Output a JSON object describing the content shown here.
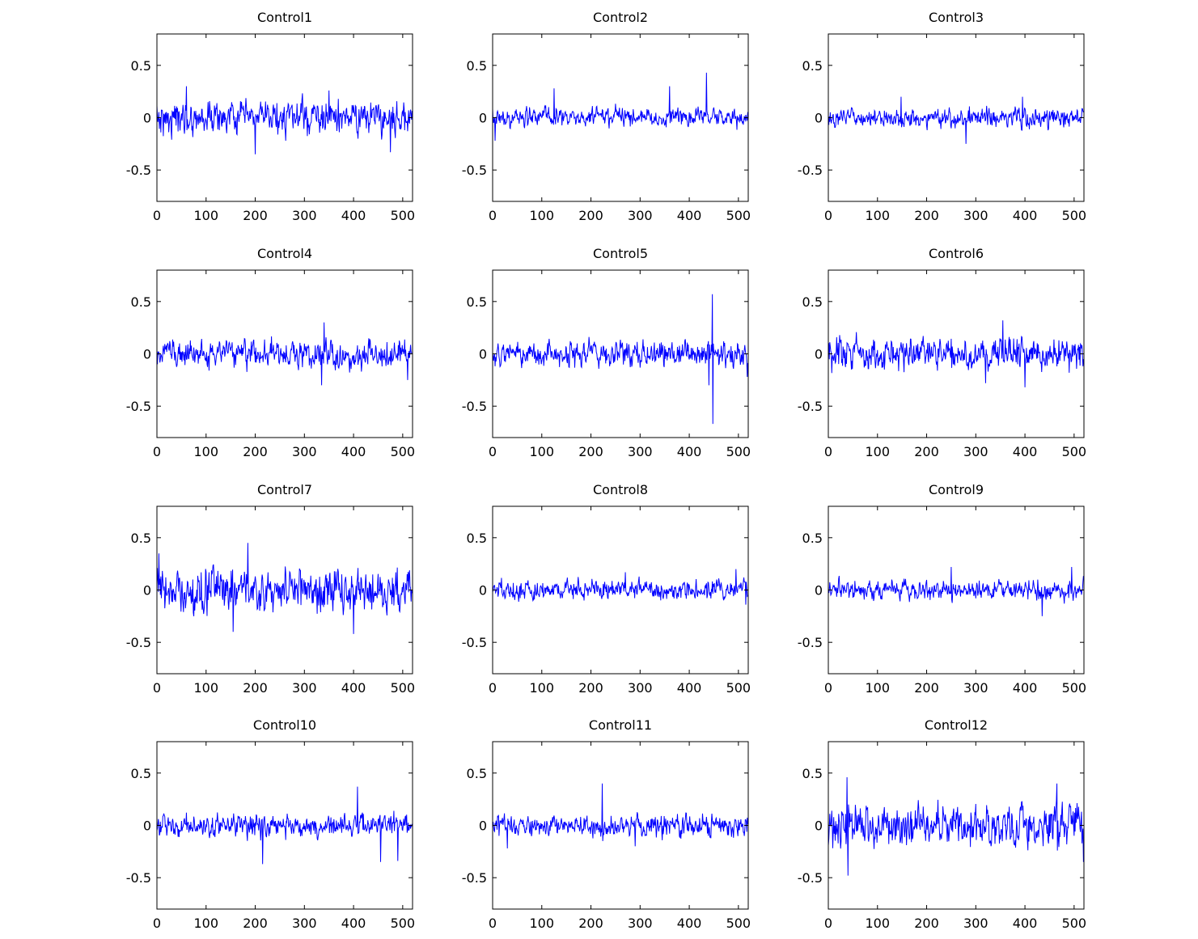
{
  "figure": {
    "background": "#ffffff",
    "line_color": "#0000ff"
  },
  "chart_data": [
    {
      "type": "line",
      "title": "Control1",
      "xlim": [
        0,
        520
      ],
      "ylim": [
        -0.8,
        0.8
      ],
      "xticks": [
        "0",
        "100",
        "200",
        "300",
        "400",
        "500"
      ],
      "yticks": [
        "0.5",
        "0",
        "-0.5"
      ],
      "grid": false,
      "n_points": 520,
      "amplitude": 0.1,
      "peak_max": 0.3,
      "peak_min": -0.35,
      "spikes": [
        {
          "x": 60,
          "y": 0.3
        },
        {
          "x": 200,
          "y": -0.35
        },
        {
          "x": 350,
          "y": 0.26
        },
        {
          "x": 475,
          "y": -0.33
        }
      ]
    },
    {
      "type": "line",
      "title": "Control2",
      "xlim": [
        0,
        520
      ],
      "ylim": [
        -0.8,
        0.8
      ],
      "xticks": [
        "0",
        "100",
        "200",
        "300",
        "400",
        "500"
      ],
      "yticks": [
        "0.5",
        "0",
        "-0.5"
      ],
      "grid": false,
      "n_points": 520,
      "amplitude": 0.06,
      "peak_max": 0.43,
      "peak_min": -0.22,
      "spikes": [
        {
          "x": 125,
          "y": 0.28
        },
        {
          "x": 360,
          "y": 0.3
        },
        {
          "x": 435,
          "y": 0.43
        },
        {
          "x": 5,
          "y": -0.22
        }
      ]
    },
    {
      "type": "line",
      "title": "Control3",
      "xlim": [
        0,
        520
      ],
      "ylim": [
        -0.8,
        0.8
      ],
      "xticks": [
        "0",
        "100",
        "200",
        "300",
        "400",
        "500"
      ],
      "yticks": [
        "0.5",
        "0",
        "-0.5"
      ],
      "grid": false,
      "n_points": 520,
      "amplitude": 0.06,
      "peak_max": 0.2,
      "peak_min": -0.25,
      "spikes": [
        {
          "x": 148,
          "y": 0.2
        },
        {
          "x": 280,
          "y": -0.25
        },
        {
          "x": 395,
          "y": 0.2
        }
      ]
    },
    {
      "type": "line",
      "title": "Control4",
      "xlim": [
        0,
        520
      ],
      "ylim": [
        -0.8,
        0.8
      ],
      "xticks": [
        "0",
        "100",
        "200",
        "300",
        "400",
        "500"
      ],
      "yticks": [
        "0.5",
        "0",
        "-0.5"
      ],
      "grid": false,
      "n_points": 520,
      "amplitude": 0.09,
      "peak_max": 0.3,
      "peak_min": -0.3,
      "spikes": [
        {
          "x": 340,
          "y": 0.3
        },
        {
          "x": 335,
          "y": -0.3
        },
        {
          "x": 510,
          "y": -0.25
        }
      ]
    },
    {
      "type": "line",
      "title": "Control5",
      "xlim": [
        0,
        520
      ],
      "ylim": [
        -0.8,
        0.8
      ],
      "xticks": [
        "0",
        "100",
        "200",
        "300",
        "400",
        "500"
      ],
      "yticks": [
        "0.5",
        "0",
        "-0.5"
      ],
      "grid": false,
      "n_points": 520,
      "amplitude": 0.08,
      "peak_max": 0.57,
      "peak_min": -0.67,
      "spikes": [
        {
          "x": 447,
          "y": 0.57
        },
        {
          "x": 448,
          "y": -0.67
        },
        {
          "x": 440,
          "y": -0.3
        },
        {
          "x": 518,
          "y": -0.22
        }
      ]
    },
    {
      "type": "line",
      "title": "Control6",
      "xlim": [
        0,
        520
      ],
      "ylim": [
        -0.8,
        0.8
      ],
      "xticks": [
        "0",
        "100",
        "200",
        "300",
        "400",
        "500"
      ],
      "yticks": [
        "0.5",
        "0",
        "-0.5"
      ],
      "grid": false,
      "n_points": 520,
      "amplitude": 0.1,
      "peak_max": 0.32,
      "peak_min": -0.32,
      "spikes": [
        {
          "x": 355,
          "y": 0.32
        },
        {
          "x": 400,
          "y": -0.32
        },
        {
          "x": 320,
          "y": -0.28
        }
      ]
    },
    {
      "type": "line",
      "title": "Control7",
      "xlim": [
        0,
        520
      ],
      "ylim": [
        -0.8,
        0.8
      ],
      "xticks": [
        "0",
        "100",
        "200",
        "300",
        "400",
        "500"
      ],
      "yticks": [
        "0.5",
        "0",
        "-0.5"
      ],
      "grid": false,
      "n_points": 520,
      "amplitude": 0.13,
      "peak_max": 0.45,
      "peak_min": -0.42,
      "spikes": [
        {
          "x": 185,
          "y": 0.45
        },
        {
          "x": 4,
          "y": 0.35
        },
        {
          "x": 155,
          "y": -0.4
        },
        {
          "x": 400,
          "y": -0.42
        }
      ]
    },
    {
      "type": "line",
      "title": "Control8",
      "xlim": [
        0,
        520
      ],
      "ylim": [
        -0.8,
        0.8
      ],
      "xticks": [
        "0",
        "100",
        "200",
        "300",
        "400",
        "500"
      ],
      "yticks": [
        "0.5",
        "0",
        "-0.5"
      ],
      "grid": false,
      "n_points": 520,
      "amplitude": 0.06,
      "peak_max": 0.2,
      "peak_min": -0.15,
      "spikes": [
        {
          "x": 495,
          "y": 0.2
        },
        {
          "x": 270,
          "y": 0.17
        },
        {
          "x": 515,
          "y": -0.14
        }
      ]
    },
    {
      "type": "line",
      "title": "Control9",
      "xlim": [
        0,
        520
      ],
      "ylim": [
        -0.8,
        0.8
      ],
      "xticks": [
        "0",
        "100",
        "200",
        "300",
        "400",
        "500"
      ],
      "yticks": [
        "0.5",
        "0",
        "-0.5"
      ],
      "grid": false,
      "n_points": 520,
      "amplitude": 0.06,
      "peak_max": 0.22,
      "peak_min": -0.25,
      "spikes": [
        {
          "x": 495,
          "y": 0.22
        },
        {
          "x": 250,
          "y": 0.22
        },
        {
          "x": 435,
          "y": -0.25
        }
      ]
    },
    {
      "type": "line",
      "title": "Control10",
      "xlim": [
        0,
        520
      ],
      "ylim": [
        -0.8,
        0.8
      ],
      "xticks": [
        "0",
        "100",
        "200",
        "300",
        "400",
        "500"
      ],
      "yticks": [
        "0.5",
        "0",
        "-0.5"
      ],
      "grid": false,
      "n_points": 520,
      "amplitude": 0.07,
      "peak_max": 0.37,
      "peak_min": -0.37,
      "spikes": [
        {
          "x": 408,
          "y": 0.37
        },
        {
          "x": 215,
          "y": -0.37
        },
        {
          "x": 455,
          "y": -0.35
        },
        {
          "x": 490,
          "y": -0.34
        }
      ]
    },
    {
      "type": "line",
      "title": "Control11",
      "xlim": [
        0,
        520
      ],
      "ylim": [
        -0.8,
        0.8
      ],
      "xticks": [
        "0",
        "100",
        "200",
        "300",
        "400",
        "500"
      ],
      "yticks": [
        "0.5",
        "0",
        "-0.5"
      ],
      "grid": false,
      "n_points": 520,
      "amplitude": 0.07,
      "peak_max": 0.4,
      "peak_min": -0.23,
      "spikes": [
        {
          "x": 223,
          "y": 0.4
        },
        {
          "x": 30,
          "y": -0.22
        },
        {
          "x": 290,
          "y": -0.2
        }
      ]
    },
    {
      "type": "line",
      "title": "Control12",
      "xlim": [
        0,
        520
      ],
      "ylim": [
        -0.8,
        0.8
      ],
      "xticks": [
        "0",
        "100",
        "200",
        "300",
        "400",
        "500"
      ],
      "yticks": [
        "0.5",
        "0",
        "-0.5"
      ],
      "grid": false,
      "n_points": 520,
      "amplitude": 0.13,
      "peak_max": 0.46,
      "peak_min": -0.48,
      "spikes": [
        {
          "x": 38,
          "y": 0.46
        },
        {
          "x": 40,
          "y": -0.48
        },
        {
          "x": 465,
          "y": 0.4
        },
        {
          "x": 520,
          "y": -0.35
        }
      ]
    }
  ]
}
